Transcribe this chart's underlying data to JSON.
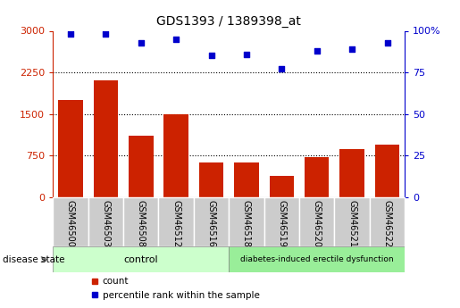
{
  "title": "GDS1393 / 1389398_at",
  "samples": [
    "GSM46500",
    "GSM46503",
    "GSM46508",
    "GSM46512",
    "GSM46516",
    "GSM46518",
    "GSM46519",
    "GSM46520",
    "GSM46521",
    "GSM46522"
  ],
  "counts": [
    1750,
    2100,
    1100,
    1500,
    620,
    620,
    380,
    720,
    870,
    950
  ],
  "percentiles": [
    98,
    98,
    93,
    95,
    85,
    86,
    77,
    88,
    89,
    93
  ],
  "bar_color": "#cc2200",
  "dot_color": "#0000cc",
  "left_yticks": [
    0,
    750,
    1500,
    2250,
    3000
  ],
  "right_yticks": [
    0,
    25,
    50,
    75,
    100
  ],
  "ylim_left": [
    0,
    3000
  ],
  "ylim_right": [
    0,
    100
  ],
  "n_control": 5,
  "n_disease": 5,
  "control_label": "control",
  "disease_label": "diabetes-induced erectile dysfunction",
  "disease_state_label": "disease state",
  "legend_count": "count",
  "legend_percentile": "percentile rank within the sample",
  "control_color": "#ccffcc",
  "disease_color": "#99ee99",
  "tick_bg_color": "#cccccc",
  "left_tick_color": "#cc2200",
  "right_tick_color": "#0000cc",
  "grid_yticks": [
    750,
    1500,
    2250
  ]
}
